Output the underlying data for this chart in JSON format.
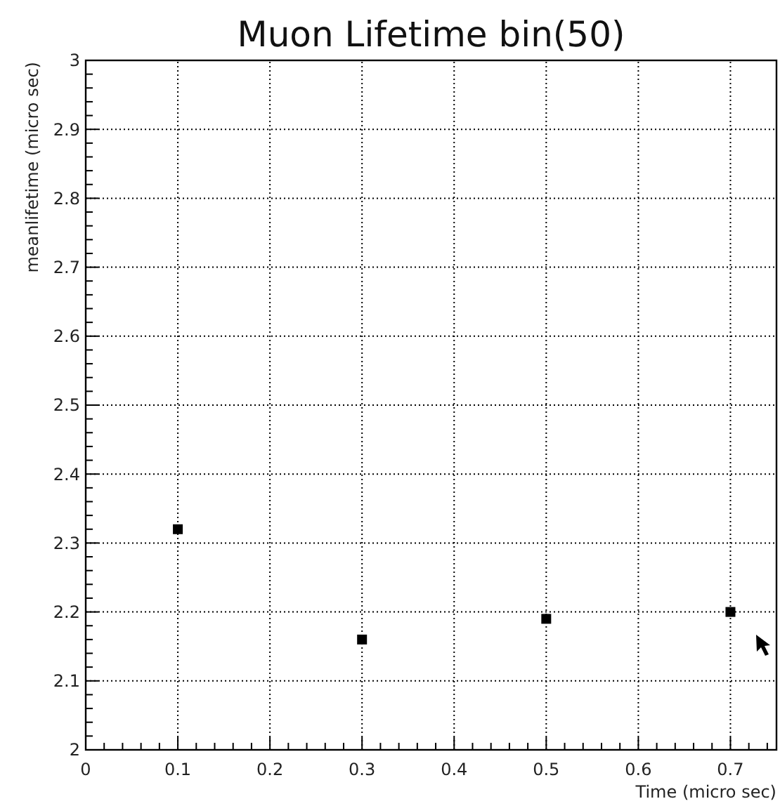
{
  "chart_data": {
    "type": "scatter",
    "title": "Muon Lifetime bin(50)",
    "xlabel": "Time (micro sec)",
    "ylabel": "meanlifetime (micro sec)",
    "x": [
      0.1,
      0.3,
      0.5,
      0.7
    ],
    "values": [
      2.32,
      2.16,
      2.19,
      2.2
    ],
    "color": "#000000",
    "marker": "square",
    "xlim": [
      0,
      0.75
    ],
    "xticks": [
      0,
      {
        "value": 0.02,
        "label": null
      },
      {
        "value": 0.04,
        "label": null
      },
      {
        "value": 0.06,
        "label": null
      },
      {
        "value": 0.08,
        "label": null
      },
      0.1,
      {
        "value": 0.12,
        "label": null
      },
      {
        "value": 0.14,
        "label": null
      },
      {
        "value": 0.16,
        "label": null
      },
      {
        "value": 0.18,
        "label": null
      },
      0.2,
      {
        "value": 0.22,
        "label": null
      },
      {
        "value": 0.24,
        "label": null
      },
      {
        "value": 0.26,
        "label": null
      },
      {
        "value": 0.28,
        "label": null
      },
      0.3,
      {
        "value": 0.32,
        "label": null
      },
      {
        "value": 0.34,
        "label": null
      },
      {
        "value": 0.36,
        "label": null
      },
      {
        "value": 0.38,
        "label": null
      },
      0.4,
      {
        "value": 0.42,
        "label": null
      },
      {
        "value": 0.44,
        "label": null
      },
      {
        "value": 0.46,
        "label": null
      },
      {
        "value": 0.48,
        "label": null
      },
      0.5,
      {
        "value": 0.52,
        "label": null
      },
      {
        "value": 0.54,
        "label": null
      },
      {
        "value": 0.56,
        "label": null
      },
      {
        "value": 0.58,
        "label": null
      },
      0.6,
      {
        "value": 0.62,
        "label": null
      },
      {
        "value": 0.64,
        "label": null
      },
      {
        "value": 0.66,
        "label": null
      },
      {
        "value": 0.68,
        "label": null
      },
      0.7,
      {
        "value": 0.72,
        "label": null
      },
      {
        "value": 0.74,
        "label": null
      }
    ],
    "ylim": [
      2,
      3
    ],
    "yticks": [
      2,
      {
        "value": 2.02,
        "label": null
      },
      {
        "value": 2.04,
        "label": null
      },
      {
        "value": 2.06,
        "label": null
      },
      {
        "value": 2.08,
        "label": null
      },
      2.1,
      {
        "value": 2.12,
        "label": null
      },
      {
        "value": 2.14,
        "label": null
      },
      {
        "value": 2.16,
        "label": null
      },
      {
        "value": 2.18,
        "label": null
      },
      2.2,
      {
        "value": 2.22,
        "label": null
      },
      {
        "value": 2.24,
        "label": null
      },
      {
        "value": 2.26,
        "label": null
      },
      {
        "value": 2.28,
        "label": null
      },
      2.3,
      {
        "value": 2.32,
        "label": null
      },
      {
        "value": 2.34,
        "label": null
      },
      {
        "value": 2.36,
        "label": null
      },
      {
        "value": 2.38,
        "label": null
      },
      2.4,
      {
        "value": 2.42,
        "label": null
      },
      {
        "value": 2.44,
        "label": null
      },
      {
        "value": 2.46,
        "label": null
      },
      {
        "value": 2.48,
        "label": null
      },
      2.5,
      {
        "value": 2.52,
        "label": null
      },
      {
        "value": 2.54,
        "label": null
      },
      {
        "value": 2.56,
        "label": null
      },
      {
        "value": 2.58,
        "label": null
      },
      2.6,
      {
        "value": 2.62,
        "label": null
      },
      {
        "value": 2.64,
        "label": null
      },
      {
        "value": 2.66,
        "label": null
      },
      {
        "value": 2.68,
        "label": null
      },
      2.7,
      {
        "value": 2.72,
        "label": null
      },
      {
        "value": 2.74,
        "label": null
      },
      {
        "value": 2.76,
        "label": null
      },
      {
        "value": 2.78,
        "label": null
      },
      2.8,
      {
        "value": 2.82,
        "label": null
      },
      {
        "value": 2.84,
        "label": null
      },
      {
        "value": 2.86,
        "label": null
      },
      {
        "value": 2.88,
        "label": null
      },
      2.9,
      {
        "value": 2.92,
        "label": null
      },
      {
        "value": 2.94,
        "label": null
      },
      {
        "value": 2.96,
        "label": null
      },
      {
        "value": 2.98,
        "label": null
      },
      3
    ],
    "grid": true
  }
}
